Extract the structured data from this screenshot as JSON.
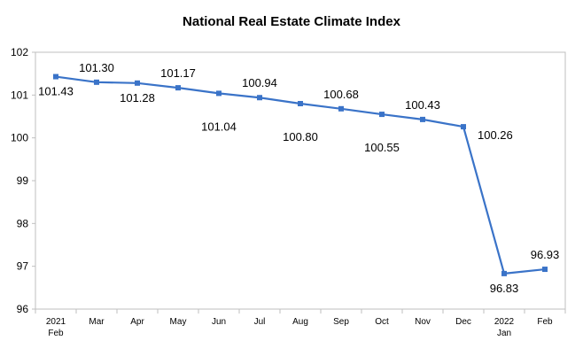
{
  "chart_data": {
    "type": "line",
    "title": "National Real Estate Climate Index",
    "xlabel": "",
    "ylabel": "",
    "ylim": [
      96,
      102
    ],
    "yticks": [
      "96",
      "97",
      "98",
      "99",
      "100",
      "101",
      "102"
    ],
    "categories": [
      {
        "top": "2021",
        "bottom": "Feb"
      },
      {
        "top": "Mar",
        "bottom": ""
      },
      {
        "top": "Apr",
        "bottom": ""
      },
      {
        "top": "May",
        "bottom": ""
      },
      {
        "top": "Jun",
        "bottom": ""
      },
      {
        "top": "Jul",
        "bottom": ""
      },
      {
        "top": "Aug",
        "bottom": ""
      },
      {
        "top": "Sep",
        "bottom": ""
      },
      {
        "top": "Oct",
        "bottom": ""
      },
      {
        "top": "Nov",
        "bottom": ""
      },
      {
        "top": "Dec",
        "bottom": ""
      },
      {
        "top": "2022",
        "bottom": "Jan"
      },
      {
        "top": "Feb",
        "bottom": ""
      }
    ],
    "series": [
      {
        "values": [
          101.43,
          101.3,
          101.28,
          101.17,
          101.04,
          100.94,
          100.8,
          100.68,
          100.55,
          100.43,
          100.26,
          96.83,
          96.93
        ],
        "labels": [
          "101.43",
          "101.30",
          "101.28",
          "101.17",
          "101.04",
          "100.94",
          "100.80",
          "100.68",
          "100.55",
          "100.43",
          "100.26",
          "96.83",
          "96.93"
        ],
        "label_positions": [
          "below",
          "above",
          "below",
          "above",
          "far-below",
          "above",
          "far-below",
          "above",
          "far-below",
          "above",
          "right",
          "below",
          "above"
        ]
      }
    ],
    "line_color": "#3a73c8",
    "grid": false,
    "legend": "none"
  }
}
